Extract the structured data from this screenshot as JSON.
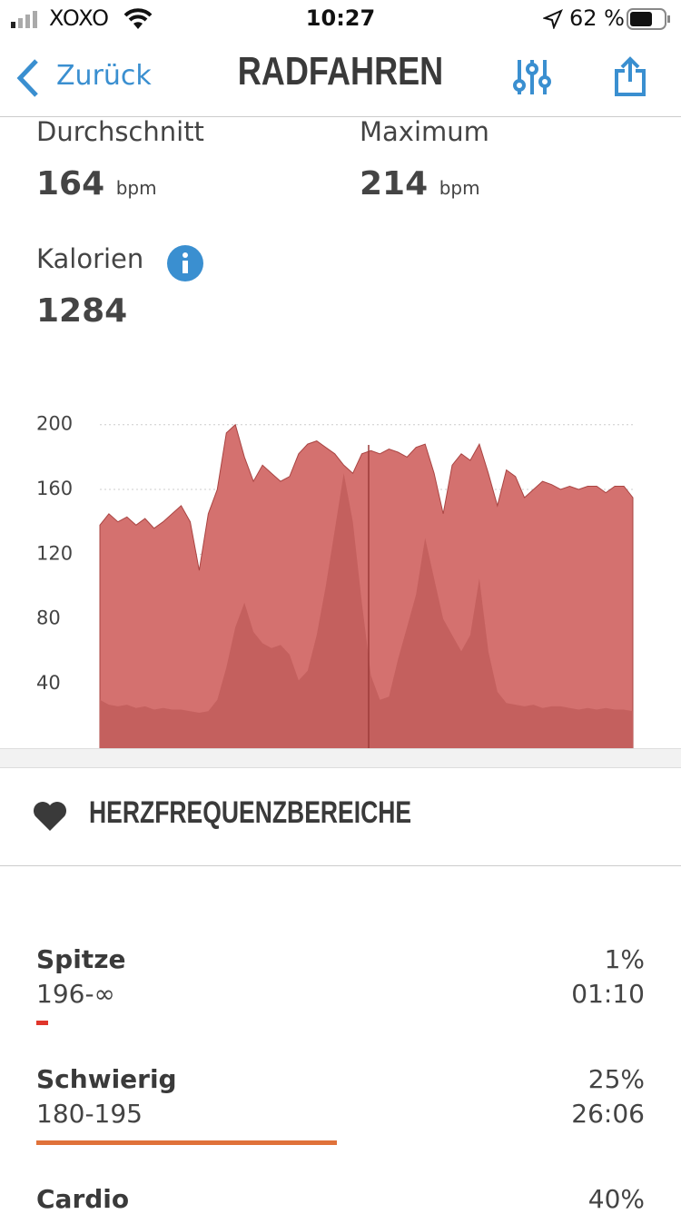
{
  "status_bar": {
    "carrier": "XOXO",
    "time": "10:27",
    "battery": "62 %"
  },
  "nav": {
    "back": "Zurück",
    "title": "RADFAHREN"
  },
  "stats": {
    "average_label": "Durchschnitt",
    "average_value": "164",
    "average_unit": "bpm",
    "maximum_label": "Maximum",
    "maximum_value": "214",
    "maximum_unit": "bpm",
    "calories_label": "Kalorien",
    "calories_value": "1284"
  },
  "chart_data": {
    "type": "area",
    "series": [
      {
        "color": "#d4716f",
        "values": [
          138,
          145,
          140,
          143,
          138,
          142,
          136,
          140,
          145,
          150,
          140,
          110,
          145,
          160,
          195,
          200,
          180,
          165,
          175,
          170,
          165,
          168,
          182,
          188,
          190,
          186,
          182,
          175,
          170,
          182,
          184,
          182,
          185,
          183,
          180,
          186,
          188,
          170,
          145,
          175,
          182,
          178,
          188,
          170,
          150,
          172,
          168,
          155,
          160,
          165,
          163,
          160,
          162,
          160,
          162,
          162,
          158,
          162,
          162,
          155
        ]
      },
      {
        "color": "#c4605e",
        "values": [
          30,
          27,
          26,
          27,
          25,
          26,
          24,
          25,
          24,
          24,
          23,
          22,
          23,
          30,
          50,
          75,
          90,
          72,
          65,
          62,
          64,
          58,
          42,
          48,
          70,
          100,
          135,
          170,
          140,
          90,
          45,
          30,
          32,
          55,
          75,
          95,
          130,
          105,
          80,
          70,
          60,
          70,
          105,
          60,
          35,
          28,
          27,
          26,
          27,
          25,
          26,
          26,
          25,
          24,
          25,
          24,
          25,
          24,
          24,
          23
        ]
      }
    ],
    "ylim": [
      0,
      215
    ],
    "yticks": [
      40,
      80,
      120,
      160,
      200
    ],
    "grid": true
  },
  "zones": {
    "title": "HERZFREQUENZBEREICHE",
    "names": [
      "Spitze",
      "Schwierig",
      "Cardio"
    ],
    "ranges": [
      "196-∞",
      "180-195",
      null
    ],
    "values": [
      1,
      25,
      40
    ],
    "value_labels": [
      "1%",
      "25%",
      "40%"
    ],
    "times": [
      "01:10",
      "26:06",
      null
    ],
    "colors": [
      "#e0352b",
      "#e0723a",
      null
    ]
  }
}
